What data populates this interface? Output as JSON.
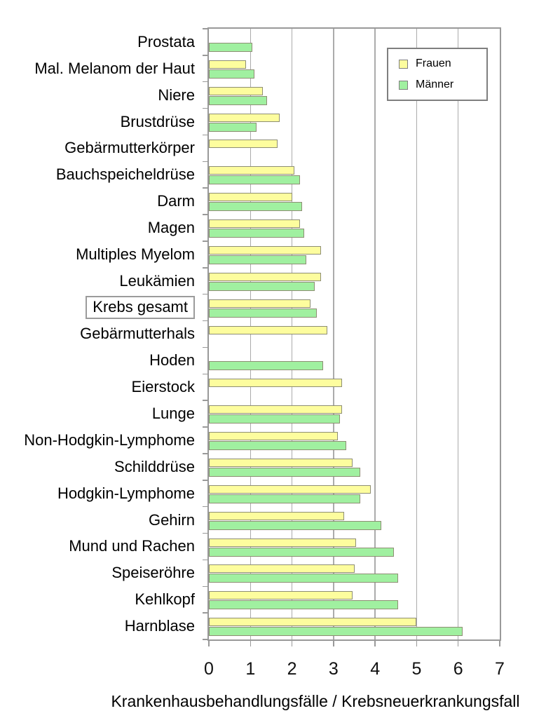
{
  "chart_data": {
    "type": "bar",
    "orientation": "horizontal",
    "title": "",
    "xlabel": "Krankenhausbehandlungsfälle / Krebsneuerkrankungsfall",
    "ylabel": "",
    "xlim": [
      0,
      7
    ],
    "xticks": [
      "0",
      "1",
      "2",
      "3",
      "4",
      "5",
      "6",
      "7"
    ],
    "grid": true,
    "legend_position": "top-right",
    "highlighted_category": "Krebs gesamt",
    "categories": [
      "Prostata",
      "Mal. Melanom der Haut",
      "Niere",
      "Brustdrüse",
      "Gebärmutterkörper",
      "Bauchspeicheldrüse",
      "Darm",
      "Magen",
      "Multiples Myelom",
      "Leukämien",
      "Krebs gesamt",
      "Gebärmutterhals",
      "Hoden",
      "Eierstock",
      "Lunge",
      "Non-Hodgkin-Lymphome",
      "Schilddrüse",
      "Hodgkin-Lymphome",
      "Gehirn",
      "Mund und Rachen",
      "Speiseröhre",
      "Kehlkopf",
      "Harnblase"
    ],
    "series": [
      {
        "name": "Frauen",
        "color": "#fdfd9e",
        "values": [
          null,
          0.9,
          1.3,
          1.7,
          1.65,
          2.05,
          2.0,
          2.2,
          2.7,
          2.7,
          2.45,
          2.85,
          null,
          3.2,
          3.2,
          3.1,
          3.45,
          3.9,
          3.25,
          3.55,
          3.5,
          3.45,
          5.0
        ]
      },
      {
        "name": "Männer",
        "color": "#a0f0a0",
        "values": [
          1.05,
          1.1,
          1.4,
          1.15,
          null,
          2.2,
          2.25,
          2.3,
          2.35,
          2.55,
          2.6,
          null,
          2.75,
          null,
          3.15,
          3.3,
          3.65,
          3.65,
          4.15,
          4.45,
          4.55,
          4.55,
          6.1
        ]
      }
    ],
    "colors": {
      "grid": "#ababab",
      "plot_border": "#999999",
      "bar_border": "#8e8e74",
      "text": "#000000"
    }
  }
}
